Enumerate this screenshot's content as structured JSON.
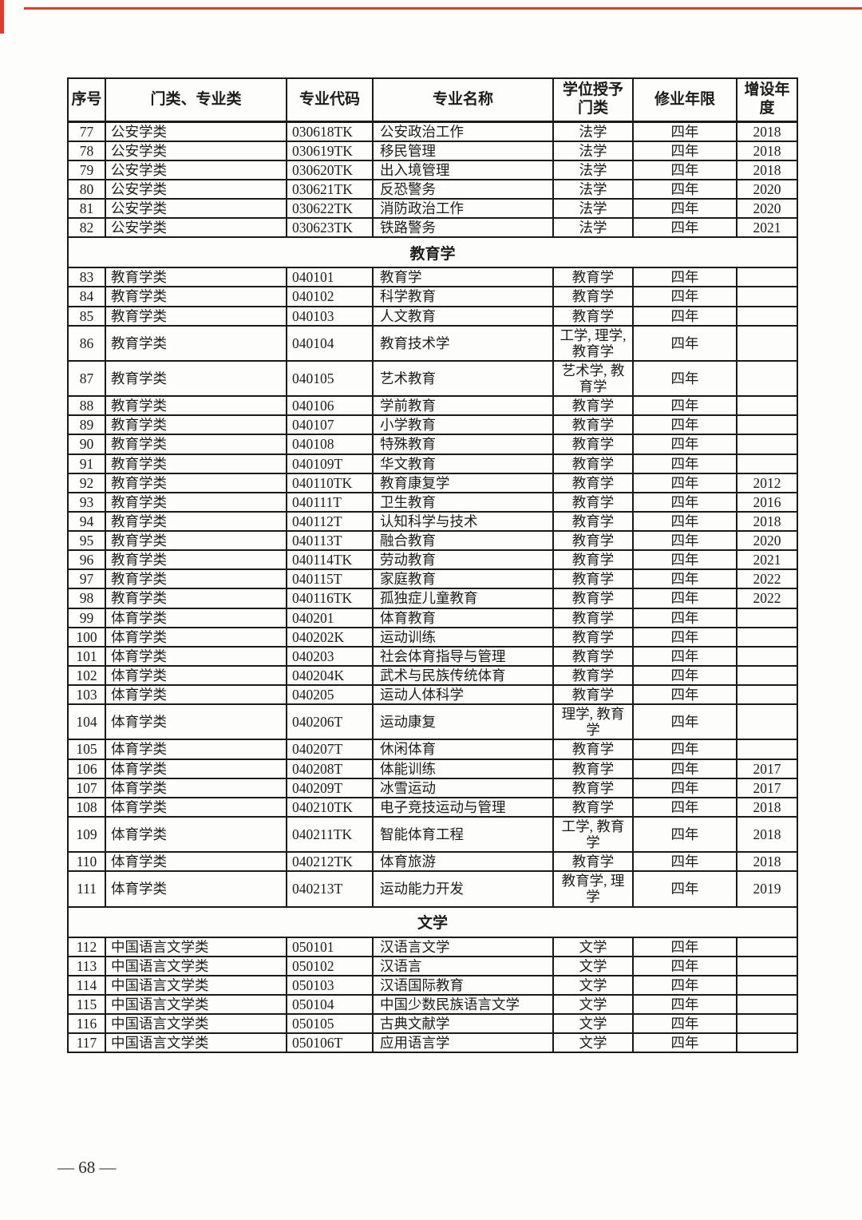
{
  "colors": {
    "accent_red": "#e23a2c",
    "border": "#1a1a1a"
  },
  "page": {
    "number_label": "— 68 —"
  },
  "table": {
    "headers": [
      "序号",
      "门类、专业类",
      "专业代码",
      "专业名称",
      "学位授予门类",
      "修业年限",
      "增设年度"
    ],
    "rows": [
      {
        "type": "data",
        "no": "77",
        "category": "公安学类",
        "code": "030618TK",
        "name": "公安政治工作",
        "degree": "法学",
        "years": "四年",
        "added": "2018"
      },
      {
        "type": "data",
        "no": "78",
        "category": "公安学类",
        "code": "030619TK",
        "name": "移民管理",
        "degree": "法学",
        "years": "四年",
        "added": "2018"
      },
      {
        "type": "data",
        "no": "79",
        "category": "公安学类",
        "code": "030620TK",
        "name": "出入境管理",
        "degree": "法学",
        "years": "四年",
        "added": "2018"
      },
      {
        "type": "data",
        "no": "80",
        "category": "公安学类",
        "code": "030621TK",
        "name": "反恐警务",
        "degree": "法学",
        "years": "四年",
        "added": "2020"
      },
      {
        "type": "data",
        "no": "81",
        "category": "公安学类",
        "code": "030622TK",
        "name": "消防政治工作",
        "degree": "法学",
        "years": "四年",
        "added": "2020"
      },
      {
        "type": "data",
        "no": "82",
        "category": "公安学类",
        "code": "030623TK",
        "name": "铁路警务",
        "degree": "法学",
        "years": "四年",
        "added": "2021"
      },
      {
        "type": "section",
        "title": "教育学"
      },
      {
        "type": "data",
        "no": "83",
        "category": "教育学类",
        "code": "040101",
        "name": "教育学",
        "degree": "教育学",
        "years": "四年",
        "added": ""
      },
      {
        "type": "data",
        "no": "84",
        "category": "教育学类",
        "code": "040102",
        "name": "科学教育",
        "degree": "教育学",
        "years": "四年",
        "added": ""
      },
      {
        "type": "data",
        "no": "85",
        "category": "教育学类",
        "code": "040103",
        "name": "人文教育",
        "degree": "教育学",
        "years": "四年",
        "added": ""
      },
      {
        "type": "data",
        "no": "86",
        "category": "教育学类",
        "code": "040104",
        "name": "教育技术学",
        "degree": "工学, 理学, 教育学",
        "years": "四年",
        "added": ""
      },
      {
        "type": "data",
        "no": "87",
        "category": "教育学类",
        "code": "040105",
        "name": "艺术教育",
        "degree": "艺术学, 教育学",
        "years": "四年",
        "added": ""
      },
      {
        "type": "data",
        "no": "88",
        "category": "教育学类",
        "code": "040106",
        "name": "学前教育",
        "degree": "教育学",
        "years": "四年",
        "added": ""
      },
      {
        "type": "data",
        "no": "89",
        "category": "教育学类",
        "code": "040107",
        "name": "小学教育",
        "degree": "教育学",
        "years": "四年",
        "added": ""
      },
      {
        "type": "data",
        "no": "90",
        "category": "教育学类",
        "code": "040108",
        "name": "特殊教育",
        "degree": "教育学",
        "years": "四年",
        "added": ""
      },
      {
        "type": "data",
        "no": "91",
        "category": "教育学类",
        "code": "040109T",
        "name": "华文教育",
        "degree": "教育学",
        "years": "四年",
        "added": ""
      },
      {
        "type": "data",
        "no": "92",
        "category": "教育学类",
        "code": "040110TK",
        "name": "教育康复学",
        "degree": "教育学",
        "years": "四年",
        "added": "2012"
      },
      {
        "type": "data",
        "no": "93",
        "category": "教育学类",
        "code": "040111T",
        "name": "卫生教育",
        "degree": "教育学",
        "years": "四年",
        "added": "2016"
      },
      {
        "type": "data",
        "no": "94",
        "category": "教育学类",
        "code": "040112T",
        "name": "认知科学与技术",
        "degree": "教育学",
        "years": "四年",
        "added": "2018"
      },
      {
        "type": "data",
        "no": "95",
        "category": "教育学类",
        "code": "040113T",
        "name": "融合教育",
        "degree": "教育学",
        "years": "四年",
        "added": "2020"
      },
      {
        "type": "data",
        "no": "96",
        "category": "教育学类",
        "code": "040114TK",
        "name": "劳动教育",
        "degree": "教育学",
        "years": "四年",
        "added": "2021"
      },
      {
        "type": "data",
        "no": "97",
        "category": "教育学类",
        "code": "040115T",
        "name": "家庭教育",
        "degree": "教育学",
        "years": "四年",
        "added": "2022"
      },
      {
        "type": "data",
        "no": "98",
        "category": "教育学类",
        "code": "040116TK",
        "name": "孤独症儿童教育",
        "degree": "教育学",
        "years": "四年",
        "added": "2022"
      },
      {
        "type": "data",
        "no": "99",
        "category": "体育学类",
        "code": "040201",
        "name": "体育教育",
        "degree": "教育学",
        "years": "四年",
        "added": ""
      },
      {
        "type": "data",
        "no": "100",
        "category": "体育学类",
        "code": "040202K",
        "name": "运动训练",
        "degree": "教育学",
        "years": "四年",
        "added": ""
      },
      {
        "type": "data",
        "no": "101",
        "category": "体育学类",
        "code": "040203",
        "name": "社会体育指导与管理",
        "degree": "教育学",
        "years": "四年",
        "added": ""
      },
      {
        "type": "data",
        "no": "102",
        "category": "体育学类",
        "code": "040204K",
        "name": "武术与民族传统体育",
        "degree": "教育学",
        "years": "四年",
        "added": ""
      },
      {
        "type": "data",
        "no": "103",
        "category": "体育学类",
        "code": "040205",
        "name": "运动人体科学",
        "degree": "教育学",
        "years": "四年",
        "added": ""
      },
      {
        "type": "data",
        "no": "104",
        "category": "体育学类",
        "code": "040206T",
        "name": "运动康复",
        "degree": "理学, 教育学",
        "years": "四年",
        "added": ""
      },
      {
        "type": "data",
        "no": "105",
        "category": "体育学类",
        "code": "040207T",
        "name": "休闲体育",
        "degree": "教育学",
        "years": "四年",
        "added": ""
      },
      {
        "type": "data",
        "no": "106",
        "category": "体育学类",
        "code": "040208T",
        "name": "体能训练",
        "degree": "教育学",
        "years": "四年",
        "added": "2017"
      },
      {
        "type": "data",
        "no": "107",
        "category": "体育学类",
        "code": "040209T",
        "name": "冰雪运动",
        "degree": "教育学",
        "years": "四年",
        "added": "2017"
      },
      {
        "type": "data",
        "no": "108",
        "category": "体育学类",
        "code": "040210TK",
        "name": "电子竞技运动与管理",
        "degree": "教育学",
        "years": "四年",
        "added": "2018"
      },
      {
        "type": "data",
        "no": "109",
        "category": "体育学类",
        "code": "040211TK",
        "name": "智能体育工程",
        "degree": "工学, 教育学",
        "years": "四年",
        "added": "2018"
      },
      {
        "type": "data",
        "no": "110",
        "category": "体育学类",
        "code": "040212TK",
        "name": "体育旅游",
        "degree": "教育学",
        "years": "四年",
        "added": "2018"
      },
      {
        "type": "data",
        "no": "111",
        "category": "体育学类",
        "code": "040213T",
        "name": "运动能力开发",
        "degree": "教育学, 理学",
        "years": "四年",
        "added": "2019"
      },
      {
        "type": "section",
        "title": "文学"
      },
      {
        "type": "data",
        "no": "112",
        "category": "中国语言文学类",
        "code": "050101",
        "name": "汉语言文学",
        "degree": "文学",
        "years": "四年",
        "added": ""
      },
      {
        "type": "data",
        "no": "113",
        "category": "中国语言文学类",
        "code": "050102",
        "name": "汉语言",
        "degree": "文学",
        "years": "四年",
        "added": ""
      },
      {
        "type": "data",
        "no": "114",
        "category": "中国语言文学类",
        "code": "050103",
        "name": "汉语国际教育",
        "degree": "文学",
        "years": "四年",
        "added": ""
      },
      {
        "type": "data",
        "no": "115",
        "category": "中国语言文学类",
        "code": "050104",
        "name": "中国少数民族语言文学",
        "degree": "文学",
        "years": "四年",
        "added": ""
      },
      {
        "type": "data",
        "no": "116",
        "category": "中国语言文学类",
        "code": "050105",
        "name": "古典文献学",
        "degree": "文学",
        "years": "四年",
        "added": ""
      },
      {
        "type": "data",
        "no": "117",
        "category": "中国语言文学类",
        "code": "050106T",
        "name": "应用语言学",
        "degree": "文学",
        "years": "四年",
        "added": ""
      }
    ]
  }
}
